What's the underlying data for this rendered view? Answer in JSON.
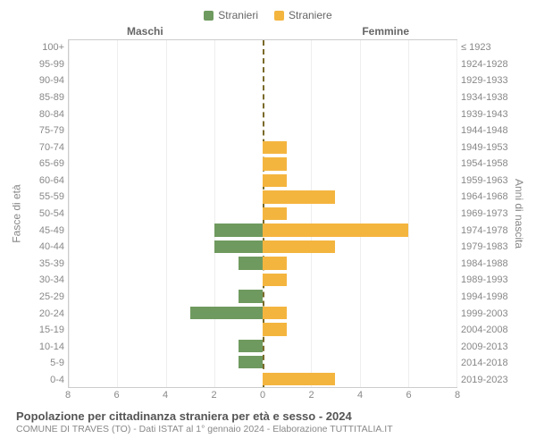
{
  "legend": {
    "male": {
      "label": "Stranieri",
      "color": "#6f9a5f"
    },
    "female": {
      "label": "Straniere",
      "color": "#f4b53f"
    }
  },
  "headers": {
    "left": "Maschi",
    "right": "Femmine"
  },
  "axis_titles": {
    "left": "Fasce di età",
    "right": "Anni di nascita"
  },
  "chart": {
    "type": "bar-pyramid",
    "xmax": 8,
    "xticks": [
      8,
      6,
      4,
      2,
      0,
      2,
      4,
      6,
      8
    ],
    "grid_color": "#eeeeee",
    "border_color": "#cccccc",
    "center_line_color": "#7a6a2a",
    "background_color": "#ffffff",
    "bar_height_ratio": 0.78,
    "tick_fontsize": 11,
    "tick_color": "#888888",
    "rows": [
      {
        "age": "100+",
        "birth": "≤ 1923",
        "m": 0,
        "f": 0
      },
      {
        "age": "95-99",
        "birth": "1924-1928",
        "m": 0,
        "f": 0
      },
      {
        "age": "90-94",
        "birth": "1929-1933",
        "m": 0,
        "f": 0
      },
      {
        "age": "85-89",
        "birth": "1934-1938",
        "m": 0,
        "f": 0
      },
      {
        "age": "80-84",
        "birth": "1939-1943",
        "m": 0,
        "f": 0
      },
      {
        "age": "75-79",
        "birth": "1944-1948",
        "m": 0,
        "f": 0
      },
      {
        "age": "70-74",
        "birth": "1949-1953",
        "m": 0,
        "f": 1
      },
      {
        "age": "65-69",
        "birth": "1954-1958",
        "m": 0,
        "f": 1
      },
      {
        "age": "60-64",
        "birth": "1959-1963",
        "m": 0,
        "f": 1
      },
      {
        "age": "55-59",
        "birth": "1964-1968",
        "m": 0,
        "f": 3
      },
      {
        "age": "50-54",
        "birth": "1969-1973",
        "m": 0,
        "f": 1
      },
      {
        "age": "45-49",
        "birth": "1974-1978",
        "m": 2,
        "f": 6
      },
      {
        "age": "40-44",
        "birth": "1979-1983",
        "m": 2,
        "f": 3
      },
      {
        "age": "35-39",
        "birth": "1984-1988",
        "m": 1,
        "f": 1
      },
      {
        "age": "30-34",
        "birth": "1989-1993",
        "m": 0,
        "f": 1
      },
      {
        "age": "25-29",
        "birth": "1994-1998",
        "m": 1,
        "f": 0
      },
      {
        "age": "20-24",
        "birth": "1999-2003",
        "m": 3,
        "f": 1
      },
      {
        "age": "15-19",
        "birth": "2004-2008",
        "m": 0,
        "f": 1
      },
      {
        "age": "10-14",
        "birth": "2009-2013",
        "m": 1,
        "f": 0
      },
      {
        "age": "5-9",
        "birth": "2014-2018",
        "m": 1,
        "f": 0
      },
      {
        "age": "0-4",
        "birth": "2019-2023",
        "m": 0,
        "f": 3
      }
    ]
  },
  "footer": {
    "title": "Popolazione per cittadinanza straniera per età e sesso - 2024",
    "subtitle": "COMUNE DI TRAVES (TO) - Dati ISTAT al 1° gennaio 2024 - Elaborazione TUTTITALIA.IT"
  }
}
